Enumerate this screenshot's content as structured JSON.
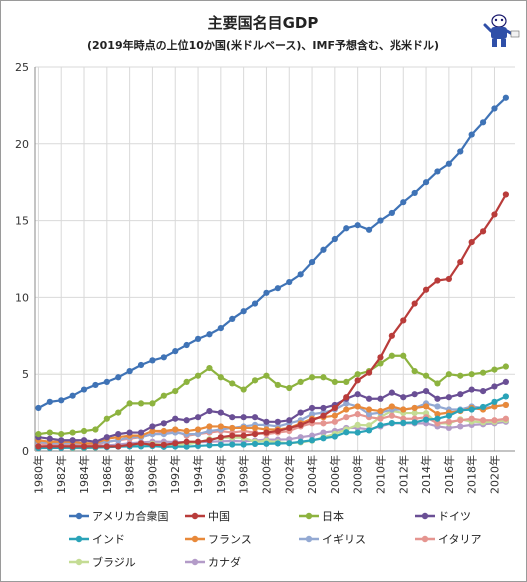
{
  "chart_data": {
    "type": "line",
    "title": "主要国名目GDP",
    "subtitle": "(2019年時点の上位10か国(米ドルベース)、IMF予想含む、兆米ドル)",
    "xlabel": "",
    "ylabel": "",
    "ylim": [
      0,
      25
    ],
    "yticks": [
      "0",
      "5",
      "10",
      "15",
      "20",
      "25"
    ],
    "x_labels": [
      "1980年",
      "1982年",
      "1984年",
      "1986年",
      "1988年",
      "1990年",
      "1992年",
      "1994年",
      "1996年",
      "1998年",
      "2000年",
      "2002年",
      "2004年",
      "2006年",
      "2008年",
      "2010年",
      "2012年",
      "2014年",
      "2016年",
      "2018年",
      "2020年"
    ],
    "x": [
      1980,
      1981,
      1982,
      1983,
      1984,
      1985,
      1986,
      1987,
      1988,
      1989,
      1990,
      1991,
      1992,
      1993,
      1994,
      1995,
      1996,
      1997,
      1998,
      1999,
      2000,
      2001,
      2002,
      2003,
      2004,
      2005,
      2006,
      2007,
      2008,
      2009,
      2010,
      2011,
      2012,
      2013,
      2014,
      2015,
      2016,
      2017,
      2018,
      2019,
      2020,
      2021
    ],
    "grid": true,
    "legend_position": "bottom",
    "series": [
      {
        "name": "アメリカ合衆国",
        "color": "#3f73b6",
        "values": [
          2.8,
          3.2,
          3.3,
          3.6,
          4.0,
          4.3,
          4.5,
          4.8,
          5.2,
          5.6,
          5.9,
          6.1,
          6.5,
          6.9,
          7.3,
          7.6,
          8.0,
          8.6,
          9.1,
          9.6,
          10.3,
          10.6,
          11.0,
          11.5,
          12.3,
          13.1,
          13.8,
          14.5,
          14.7,
          14.4,
          15.0,
          15.5,
          16.2,
          16.8,
          17.5,
          18.2,
          18.7,
          19.5,
          20.6,
          21.4,
          22.3,
          23.0
        ]
      },
      {
        "name": "中国",
        "color": "#b93c3a",
        "values": [
          0.3,
          0.3,
          0.3,
          0.3,
          0.3,
          0.3,
          0.3,
          0.3,
          0.4,
          0.5,
          0.4,
          0.4,
          0.5,
          0.6,
          0.6,
          0.7,
          0.9,
          1.0,
          1.0,
          1.1,
          1.2,
          1.3,
          1.5,
          1.7,
          2.0,
          2.3,
          2.8,
          3.5,
          4.6,
          5.1,
          6.1,
          7.5,
          8.5,
          9.6,
          10.5,
          11.1,
          11.2,
          12.3,
          13.6,
          14.3,
          15.4,
          16.7
        ]
      },
      {
        "name": "日本",
        "color": "#8db33f",
        "values": [
          1.1,
          1.2,
          1.1,
          1.2,
          1.3,
          1.4,
          2.1,
          2.5,
          3.1,
          3.1,
          3.1,
          3.6,
          3.9,
          4.5,
          4.9,
          5.4,
          4.8,
          4.4,
          4.0,
          4.6,
          4.9,
          4.3,
          4.1,
          4.5,
          4.8,
          4.8,
          4.5,
          4.5,
          5.0,
          5.2,
          5.7,
          6.2,
          6.2,
          5.2,
          4.9,
          4.4,
          5.0,
          4.9,
          5.0,
          5.1,
          5.3,
          5.5
        ]
      },
      {
        "name": "ドイツ",
        "color": "#6a4f95",
        "values": [
          0.9,
          0.8,
          0.7,
          0.7,
          0.7,
          0.6,
          0.9,
          1.1,
          1.2,
          1.2,
          1.6,
          1.8,
          2.1,
          2.0,
          2.2,
          2.6,
          2.5,
          2.2,
          2.2,
          2.2,
          1.9,
          1.9,
          2.0,
          2.5,
          2.8,
          2.8,
          3.0,
          3.4,
          3.7,
          3.4,
          3.4,
          3.8,
          3.5,
          3.7,
          3.9,
          3.4,
          3.5,
          3.7,
          4.0,
          3.9,
          4.2,
          4.5
        ]
      },
      {
        "name": "インド",
        "color": "#2aa3b8",
        "values": [
          0.19,
          0.2,
          0.2,
          0.22,
          0.21,
          0.23,
          0.25,
          0.28,
          0.3,
          0.3,
          0.32,
          0.27,
          0.29,
          0.28,
          0.33,
          0.37,
          0.4,
          0.42,
          0.42,
          0.46,
          0.47,
          0.49,
          0.51,
          0.6,
          0.7,
          0.83,
          0.94,
          1.22,
          1.2,
          1.34,
          1.68,
          1.82,
          1.83,
          1.86,
          2.04,
          2.1,
          2.29,
          2.65,
          2.7,
          2.87,
          3.2,
          3.55
        ]
      },
      {
        "name": "フランス",
        "color": "#e8893a",
        "values": [
          0.7,
          0.6,
          0.6,
          0.6,
          0.5,
          0.5,
          0.8,
          0.9,
          1.0,
          1.0,
          1.3,
          1.3,
          1.4,
          1.3,
          1.4,
          1.6,
          1.6,
          1.5,
          1.5,
          1.5,
          1.4,
          1.4,
          1.5,
          1.8,
          2.1,
          2.2,
          2.3,
          2.7,
          2.9,
          2.7,
          2.6,
          2.9,
          2.7,
          2.8,
          2.9,
          2.4,
          2.5,
          2.6,
          2.8,
          2.7,
          2.9,
          3.0
        ]
      },
      {
        "name": "イギリス",
        "color": "#93a9d3",
        "values": [
          0.6,
          0.5,
          0.5,
          0.5,
          0.5,
          0.5,
          0.6,
          0.7,
          0.9,
          0.9,
          1.1,
          1.1,
          1.2,
          1.1,
          1.1,
          1.3,
          1.4,
          1.5,
          1.6,
          1.7,
          1.7,
          1.6,
          1.8,
          2.0,
          2.4,
          2.5,
          2.7,
          3.1,
          2.9,
          2.4,
          2.5,
          2.7,
          2.7,
          2.8,
          3.1,
          2.9,
          2.7,
          2.7,
          2.9,
          2.8,
          2.9,
          3.0
        ]
      },
      {
        "name": "イタリア",
        "color": "#e59590",
        "values": [
          0.5,
          0.4,
          0.4,
          0.4,
          0.4,
          0.4,
          0.6,
          0.7,
          0.8,
          0.9,
          1.1,
          1.2,
          1.3,
          1.0,
          1.1,
          1.2,
          1.3,
          1.2,
          1.3,
          1.2,
          1.1,
          1.2,
          1.3,
          1.6,
          1.8,
          1.8,
          1.9,
          2.2,
          2.4,
          2.2,
          2.1,
          2.3,
          2.1,
          2.1,
          2.2,
          1.8,
          1.9,
          2.0,
          2.1,
          2.0,
          2.0,
          2.1
        ]
      },
      {
        "name": "ブラジル",
        "color": "#c4dc94",
        "values": [
          0.24,
          0.26,
          0.27,
          0.19,
          0.19,
          0.22,
          0.27,
          0.3,
          0.33,
          0.45,
          0.46,
          0.41,
          0.39,
          0.43,
          0.56,
          0.77,
          0.85,
          0.88,
          0.86,
          0.6,
          0.66,
          0.56,
          0.51,
          0.56,
          0.67,
          0.89,
          1.11,
          1.4,
          1.7,
          1.67,
          2.21,
          2.62,
          2.47,
          2.47,
          2.46,
          1.8,
          1.8,
          2.06,
          1.92,
          1.87,
          1.9,
          2.0
        ]
      },
      {
        "name": "カナダ",
        "color": "#b39bc8",
        "values": [
          0.28,
          0.31,
          0.31,
          0.34,
          0.35,
          0.36,
          0.37,
          0.42,
          0.5,
          0.56,
          0.6,
          0.61,
          0.58,
          0.58,
          0.58,
          0.6,
          0.63,
          0.65,
          0.63,
          0.68,
          0.74,
          0.74,
          0.76,
          0.9,
          1.0,
          1.2,
          1.3,
          1.5,
          1.5,
          1.4,
          1.6,
          1.8,
          1.8,
          1.8,
          1.8,
          1.6,
          1.5,
          1.6,
          1.7,
          1.74,
          1.8,
          1.9
        ]
      }
    ]
  }
}
